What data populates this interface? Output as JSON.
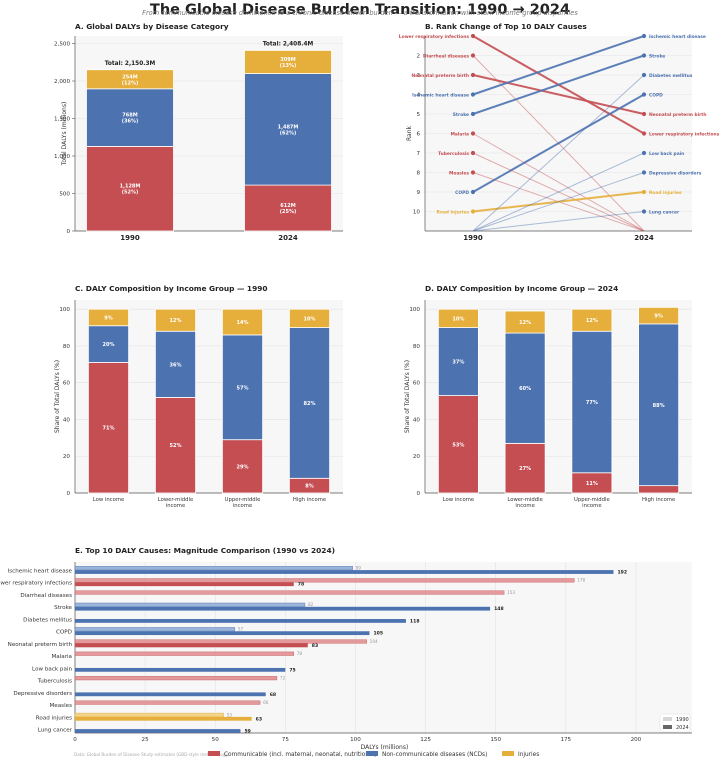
{
  "figure": {
    "title": "The Global Disease Burden Transition: 1990 → 2024",
    "subtitle": "From communicable disease dominance to a chronic-disease-driven burden — a transformation with stark income-group disparities",
    "source": "Data: Global Burden of Disease Study estimates (GBD-style methodology)"
  },
  "colors": {
    "communicable": "#c44e52",
    "ncd": "#4c72b0",
    "injuries": "#e6ae3a",
    "communicable_light": "#e39a9c",
    "ncd_light": "#9bb4d9",
    "injuries_light": "#f2d48a",
    "panel_bg": "#f7f7f7",
    "grid": "#e3e3e3"
  },
  "legend": [
    {
      "key": "communicable",
      "label": "Communicable (incl. maternal, neonatal, nutritional)"
    },
    {
      "key": "ncd",
      "label": "Non-communicable diseases (NCDs)"
    },
    {
      "key": "injuries",
      "label": "Injuries"
    }
  ],
  "chart_data": [
    {
      "id": "A",
      "type": "bar",
      "title": "A. Global DALYs by Disease Category",
      "ylabel": "Total DALYs (millions)",
      "ylim": [
        0,
        2600
      ],
      "yticks": [
        0,
        500,
        1000,
        1500,
        2000,
        2500
      ],
      "categories": [
        "1990",
        "2024"
      ],
      "series": [
        {
          "key": "communicable",
          "values": [
            1128,
            612
          ],
          "labels": [
            "1,128M\n(52%)",
            "612M\n(25%)"
          ]
        },
        {
          "key": "ncd",
          "values": [
            768,
            1487
          ],
          "labels": [
            "768M\n(36%)",
            "1,487M\n(62%)"
          ]
        },
        {
          "key": "injuries",
          "values": [
            254,
            309
          ],
          "labels": [
            "254M\n(12%)",
            "309M\n(13%)"
          ]
        }
      ],
      "totals": [
        "Total: 2,150.3M",
        "Total: 2,408.4M"
      ]
    },
    {
      "id": "B",
      "type": "line",
      "title": "B. Rank Change of Top 10 DALY Causes",
      "ylabel": "Rank",
      "x": [
        "1990",
        "2024"
      ],
      "yticks": [
        2,
        3,
        4,
        5,
        6,
        7,
        8,
        9,
        10
      ],
      "ylim": [
        1,
        11
      ],
      "off_rank": 11,
      "causes": [
        {
          "name": "Lower respiratory infections",
          "group": "communicable",
          "rank1990": 1,
          "rank2024": 6
        },
        {
          "name": "Diarrheal diseases",
          "group": "communicable",
          "rank1990": 2,
          "rank2024": null
        },
        {
          "name": "Neonatal preterm birth",
          "group": "communicable",
          "rank1990": 3,
          "rank2024": 5
        },
        {
          "name": "Ischemic heart disease",
          "group": "ncd",
          "rank1990": 4,
          "rank2024": 1
        },
        {
          "name": "Stroke",
          "group": "ncd",
          "rank1990": 5,
          "rank2024": 2
        },
        {
          "name": "Malaria",
          "group": "communicable",
          "rank1990": 6,
          "rank2024": null
        },
        {
          "name": "Tuberculosis",
          "group": "communicable",
          "rank1990": 7,
          "rank2024": null
        },
        {
          "name": "Measles",
          "group": "communicable",
          "rank1990": 8,
          "rank2024": null
        },
        {
          "name": "COPD",
          "group": "ncd",
          "rank1990": 9,
          "rank2024": 4
        },
        {
          "name": "Road injuries",
          "group": "injuries",
          "rank1990": 10,
          "rank2024": 9
        },
        {
          "name": "Diabetes mellitus",
          "group": "ncd",
          "rank1990": null,
          "rank2024": 3
        },
        {
          "name": "Low back pain",
          "group": "ncd",
          "rank1990": null,
          "rank2024": 7
        },
        {
          "name": "Depressive disorders",
          "group": "ncd",
          "rank1990": null,
          "rank2024": 8
        },
        {
          "name": "Lung cancer",
          "group": "ncd",
          "rank1990": null,
          "rank2024": 10
        }
      ]
    },
    {
      "id": "C",
      "type": "bar",
      "title": "C. DALY Composition by Income Group — 1990",
      "ylabel": "Share of Total DALYs (%)",
      "ylim": [
        0,
        105
      ],
      "yticks": [
        0,
        20,
        40,
        60,
        80,
        100
      ],
      "categories": [
        "Low income",
        "Lower-middle\nincome",
        "Upper-middle\nincome",
        "High income"
      ],
      "series": [
        {
          "key": "communicable",
          "values": [
            71,
            52,
            29,
            8
          ]
        },
        {
          "key": "ncd",
          "values": [
            20,
            36,
            57,
            82
          ]
        },
        {
          "key": "injuries",
          "values": [
            9,
            12,
            14,
            10
          ]
        }
      ]
    },
    {
      "id": "D",
      "type": "bar",
      "title": "D. DALY Composition by Income Group — 2024",
      "ylabel": "Share of Total DALYs (%)",
      "ylim": [
        0,
        105
      ],
      "yticks": [
        0,
        20,
        40,
        60,
        80,
        100
      ],
      "categories": [
        "Low income",
        "Lower-middle\nincome",
        "Upper-middle\nincome",
        "High income"
      ],
      "series": [
        {
          "key": "communicable",
          "values": [
            53,
            27,
            11,
            4
          ],
          "labels": [
            "53%",
            "27%",
            "11%",
            ""
          ]
        },
        {
          "key": "ncd",
          "values": [
            37,
            60,
            77,
            88
          ]
        },
        {
          "key": "injuries",
          "values": [
            10,
            12,
            12,
            9
          ]
        }
      ]
    },
    {
      "id": "E",
      "type": "bar",
      "orientation": "horizontal",
      "title": "E. Top 10 DALY Causes: Magnitude Comparison (1990 vs 2024)",
      "xlabel": "DALYs (millions)",
      "xlim": [
        0,
        220
      ],
      "xticks": [
        0,
        25,
        50,
        75,
        100,
        125,
        150,
        175,
        200
      ],
      "series_names": [
        "1990",
        "2024"
      ],
      "causes": [
        {
          "name": "Ischemic heart disease",
          "group": "ncd",
          "v1990": 99,
          "v2024": 192
        },
        {
          "name": "Lower respiratory infections",
          "group": "communicable",
          "v1990": 178,
          "v2024": 78
        },
        {
          "name": "Diarrheal diseases",
          "group": "communicable",
          "v1990": 153,
          "v2024": null
        },
        {
          "name": "Stroke",
          "group": "ncd",
          "v1990": 82,
          "v2024": 148
        },
        {
          "name": "Diabetes mellitus",
          "group": "ncd",
          "v1990": null,
          "v2024": 118
        },
        {
          "name": "COPD",
          "group": "ncd",
          "v1990": 57,
          "v2024": 105
        },
        {
          "name": "Neonatal preterm birth",
          "group": "communicable",
          "v1990": 104,
          "v2024": 83
        },
        {
          "name": "Malaria",
          "group": "communicable",
          "v1990": 78,
          "v2024": null
        },
        {
          "name": "Low back pain",
          "group": "ncd",
          "v1990": null,
          "v2024": 75
        },
        {
          "name": "Tuberculosis",
          "group": "communicable",
          "v1990": 72,
          "v2024": null
        },
        {
          "name": "Depressive disorders",
          "group": "ncd",
          "v1990": null,
          "v2024": 68
        },
        {
          "name": "Measles",
          "group": "communicable",
          "v1990": 66,
          "v2024": null
        },
        {
          "name": "Road injuries",
          "group": "injuries",
          "v1990": 53,
          "v2024": 63
        },
        {
          "name": "Lung cancer",
          "group": "ncd",
          "v1990": null,
          "v2024": 59
        }
      ]
    }
  ]
}
